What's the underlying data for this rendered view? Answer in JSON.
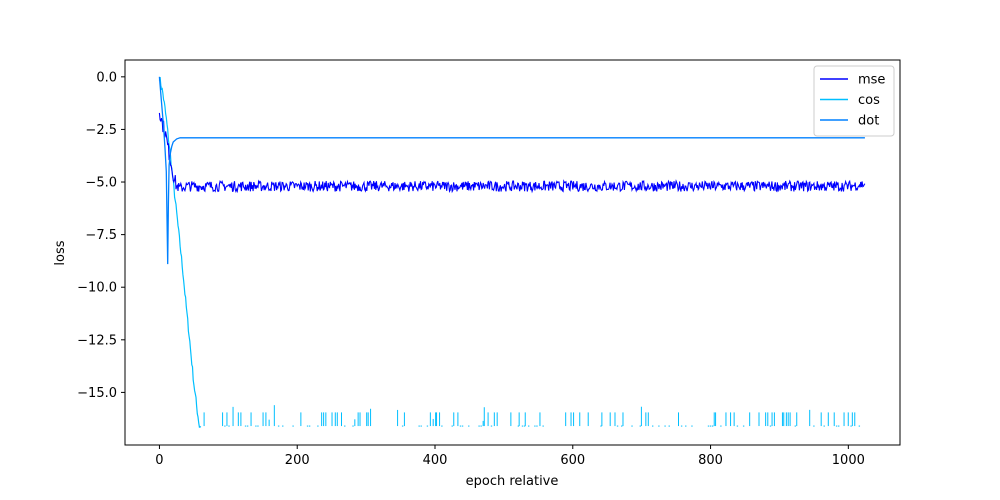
{
  "chart_data": {
    "type": "line",
    "xlabel": "epoch relative",
    "ylabel": "loss",
    "xlim": [
      -50,
      1075
    ],
    "ylim": [
      -17.5,
      0.8
    ],
    "x_ticks": [
      0,
      200,
      400,
      600,
      800,
      1000
    ],
    "x_tick_labels": [
      "0",
      "200",
      "400",
      "600",
      "800",
      "1000"
    ],
    "y_ticks": [
      0.0,
      -2.5,
      -5.0,
      -7.5,
      -10.0,
      -12.5,
      -15.0
    ],
    "y_tick_labels": [
      "0.0",
      "−2.5",
      "−5.0",
      "−7.5",
      "−10.0",
      "−12.5",
      "−15.0"
    ],
    "grid": false,
    "legend_position": "top-right",
    "series": [
      {
        "name": "mse",
        "color": "#0000ff",
        "x": [
          0,
          2,
          4,
          6,
          8,
          10,
          12,
          15,
          18,
          20,
          22,
          25,
          30,
          40,
          60,
          100,
          200,
          300,
          400,
          500,
          600,
          700,
          800,
          900,
          1000,
          1024
        ],
        "values": [
          -1.5,
          -1.9,
          -2.2,
          -2.4,
          -2.6,
          -2.9,
          -3.3,
          -3.8,
          -4.3,
          -4.6,
          -4.9,
          -5.2,
          -5.3,
          -5.2,
          -5.2,
          -5.2,
          -5.2,
          -5.2,
          -5.2,
          -5.2,
          -5.2,
          -5.2,
          -5.2,
          -5.2,
          -5.2,
          -5.1
        ],
        "noise_band": 0.25
      },
      {
        "name": "cos",
        "color": "#00bfff",
        "x": [
          0,
          5,
          10,
          15,
          20,
          25,
          30,
          35,
          40,
          45,
          50,
          55,
          58,
          60,
          100,
          200,
          300,
          400,
          500,
          600,
          700,
          800,
          900,
          1000,
          1024
        ],
        "values": [
          0.0,
          -0.8,
          -2.0,
          -3.5,
          -5.0,
          -6.5,
          -8.0,
          -9.6,
          -11.3,
          -12.9,
          -14.6,
          -15.9,
          -16.6,
          -16.6,
          -16.6,
          -16.6,
          -16.6,
          -16.6,
          -16.6,
          -16.6,
          -16.6,
          -16.6,
          -16.6,
          -16.6,
          -16.6
        ],
        "spike_floor": -16.6,
        "spike_top": -15.9
      },
      {
        "name": "dot",
        "color": "#0080ff",
        "x": [
          0,
          2,
          4,
          6,
          8,
          10,
          11,
          12,
          13,
          14,
          16,
          18,
          20,
          25,
          30,
          40,
          100,
          200,
          400,
          600,
          800,
          1000,
          1024
        ],
        "values": [
          0.0,
          -0.8,
          -1.6,
          -2.4,
          -3.4,
          -4.5,
          -6.7,
          -8.9,
          -6.0,
          -4.2,
          -3.6,
          -3.3,
          -3.1,
          -2.95,
          -2.9,
          -2.9,
          -2.9,
          -2.9,
          -2.9,
          -2.9,
          -2.9,
          -2.9,
          -2.9
        ]
      }
    ]
  }
}
